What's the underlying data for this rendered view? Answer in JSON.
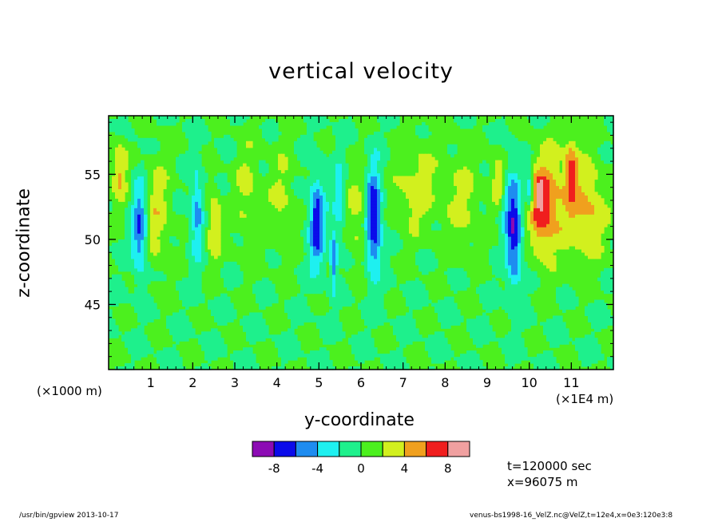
{
  "chart_data": {
    "type": "heatmap",
    "title": "vertical velocity",
    "xlabel": "y-coordinate",
    "ylabel": "z-coordinate",
    "x_multiplier": "(×1E4 m)",
    "y_multiplier": "(×1000 m)",
    "xlim": [
      0,
      12
    ],
    "ylim": [
      40,
      59.5
    ],
    "x_ticks": [
      1,
      2,
      3,
      4,
      5,
      6,
      7,
      8,
      9,
      10,
      11
    ],
    "y_ticks": [
      45,
      50,
      55
    ],
    "colorbar": {
      "levels": [
        -10,
        -8,
        -6,
        -4,
        -2,
        0,
        2,
        4,
        6,
        8,
        10
      ],
      "tick_labels": [
        "-8",
        "-4",
        "0",
        "4",
        "8"
      ],
      "tick_values": [
        -8,
        -4,
        0,
        4,
        8
      ],
      "colors": [
        "#8c0bb4",
        "#0b0bea",
        "#1e8cf0",
        "#1ef0f0",
        "#1ef08c",
        "#4cf01e",
        "#d2f01e",
        "#f0a01e",
        "#f01e1e",
        "#f0a0a0"
      ]
    },
    "background_color": "#4cf01e",
    "features": [
      {
        "y": 0.25,
        "z": 55.3,
        "value": 4.5,
        "sy": 0.13,
        "sz": 1.6
      },
      {
        "y": 0.75,
        "z": 51.0,
        "value": -7.0,
        "sy": 0.13,
        "sz": 2.6
      },
      {
        "y": 1.1,
        "z": 52.0,
        "value": 3.2,
        "sy": 0.25,
        "sz": 3.0
      },
      {
        "y": 2.1,
        "z": 52.0,
        "value": -5.0,
        "sy": 0.1,
        "sz": 2.3
      },
      {
        "y": 2.5,
        "z": 51.0,
        "value": 4.0,
        "sy": 0.12,
        "sz": 2.0
      },
      {
        "y": 3.3,
        "z": 53.5,
        "value": 2.5,
        "sy": 0.22,
        "sz": 3.0
      },
      {
        "y": 4.1,
        "z": 53.0,
        "value": 2.3,
        "sy": 0.22,
        "sz": 3.0
      },
      {
        "y": 4.95,
        "z": 51.3,
        "value": -7.5,
        "sy": 0.13,
        "sz": 2.4
      },
      {
        "y": 5.35,
        "z": 48.5,
        "value": -6.0,
        "sy": 0.06,
        "sz": 1.6
      },
      {
        "y": 5.5,
        "z": 53.0,
        "value": -3.5,
        "sy": 0.1,
        "sz": 2.0
      },
      {
        "y": 6.3,
        "z": 51.5,
        "value": -8.5,
        "sy": 0.13,
        "sz": 2.8
      },
      {
        "y": 5.9,
        "z": 52.0,
        "value": 2.8,
        "sy": 0.2,
        "sz": 2.5
      },
      {
        "y": 7.3,
        "z": 54.0,
        "value": 3.2,
        "sy": 0.35,
        "sz": 2.5
      },
      {
        "y": 8.4,
        "z": 53.0,
        "value": 2.5,
        "sy": 0.3,
        "sz": 2.8
      },
      {
        "y": 9.3,
        "z": 54.5,
        "value": 4.0,
        "sy": 0.16,
        "sz": 1.5
      },
      {
        "y": 9.65,
        "z": 50.5,
        "value": -7.5,
        "sy": 0.13,
        "sz": 3.0
      },
      {
        "y": 9.45,
        "z": 53.5,
        "value": -3.5,
        "sy": 0.13,
        "sz": 2.0
      },
      {
        "y": 10.3,
        "z": 52.5,
        "value": 5.5,
        "sy": 0.22,
        "sz": 2.5
      },
      {
        "y": 10.25,
        "z": 53.5,
        "value": 9.0,
        "sy": 0.04,
        "sz": 0.6
      },
      {
        "y": 10.0,
        "z": 54.0,
        "value": -5.0,
        "sy": 0.06,
        "sz": 1.2
      },
      {
        "y": 10.8,
        "z": 53.0,
        "value": 3.2,
        "sy": 0.5,
        "sz": 3.0
      },
      {
        "y": 11.0,
        "z": 55.5,
        "value": 4.5,
        "sy": 0.1,
        "sz": 1.6
      },
      {
        "y": 11.45,
        "z": 52.0,
        "value": 3.0,
        "sy": 0.3,
        "sz": 2.5
      }
    ]
  },
  "info": {
    "time": "t=120000 sec",
    "position": "x=96075 m"
  },
  "footer": {
    "command": "/usr/bin/gpview  2013-10-17",
    "source": "venus-bs1998-16_VelZ.nc@VelZ,t=12e4,x=0e3:120e3:8"
  }
}
